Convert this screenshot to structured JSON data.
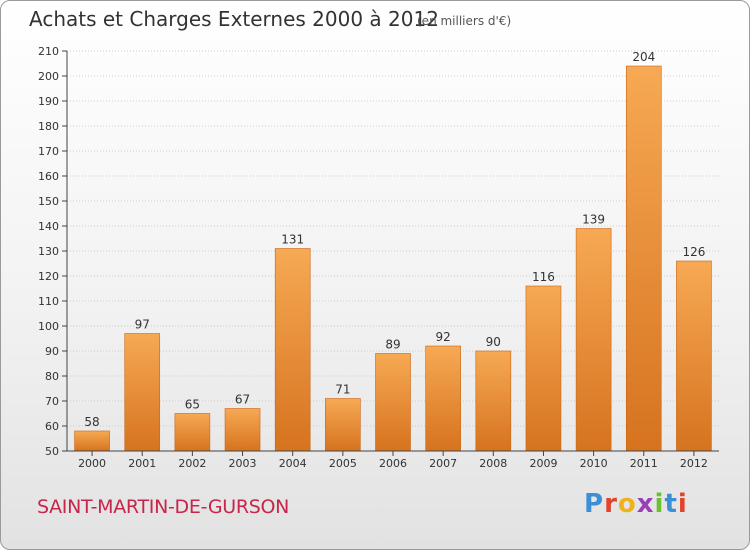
{
  "title": "Achats et Charges Externes 2000 à 2012",
  "unit_note": "(en milliers d'€)",
  "commune": "SAINT-MARTIN-DE-GURSON",
  "logo": {
    "text": "Proxiti",
    "letter_colors": [
      "#3a8fd6",
      "#e0442c",
      "#f0b11e",
      "#9a3fb8",
      "#6cbf2f",
      "#3a8fd6",
      "#e0442c"
    ]
  },
  "colors": {
    "bar_top": "#f7a953",
    "bar_bottom": "#d6731f",
    "bar_stroke": "#c8661a",
    "grid": "#cccccc",
    "axis": "#444444"
  },
  "chart_data": {
    "type": "bar",
    "title": "Achats et Charges Externes 2000 à 2012",
    "subtitle": "(en milliers d'€)",
    "xlabel": "",
    "ylabel": "",
    "categories": [
      "2000",
      "2001",
      "2002",
      "2003",
      "2004",
      "2005",
      "2006",
      "2007",
      "2008",
      "2009",
      "2010",
      "2011",
      "2012"
    ],
    "values": [
      58,
      97,
      65,
      67,
      131,
      71,
      89,
      92,
      90,
      116,
      139,
      204,
      126
    ],
    "ylim": [
      50,
      210
    ],
    "yticks": [
      50,
      60,
      70,
      80,
      90,
      100,
      110,
      120,
      130,
      140,
      150,
      160,
      170,
      180,
      190,
      200,
      210
    ],
    "grid": true,
    "legend": "none",
    "data_labels": true
  }
}
